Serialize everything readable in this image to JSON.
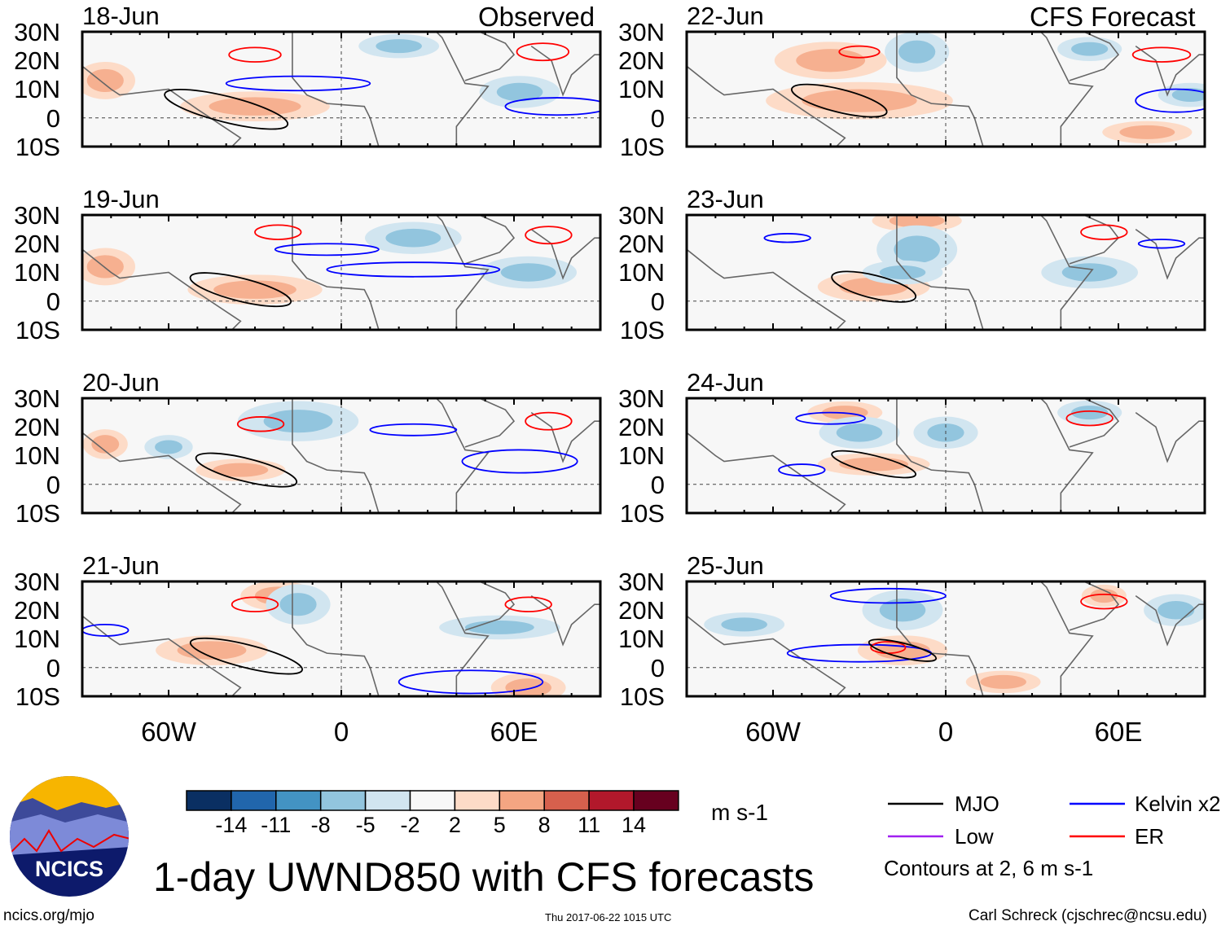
{
  "figure": {
    "title": "1-day UWND850 with CFS forecasts",
    "left_column_label": "Observed",
    "right_column_label": "CFS Forecast",
    "footer_left": "ncics.org/mjo",
    "footer_center": "Thu 2017-06-22 1015 UTC",
    "footer_right": "Carl Schreck (cjschrec@ncsu.edu)",
    "logo_text": "NCICS"
  },
  "axes": {
    "lat_labels": [
      "30N",
      "20N",
      "10N",
      "0",
      "10S"
    ],
    "lon_labels": [
      "60W",
      "0",
      "60E"
    ],
    "lon_range": [
      -90,
      90
    ],
    "lat_range": [
      -10,
      30
    ]
  },
  "panels": [
    {
      "date": "18-Jun",
      "mjo": [
        -40,
        3,
        22,
        4.5
      ],
      "kelvin": [
        [
          -15,
          12,
          25,
          2.5
        ],
        [
          75,
          4,
          18,
          3
        ]
      ],
      "er": [
        [
          -30,
          22,
          9,
          2.5
        ],
        [
          70,
          23,
          9,
          3
        ]
      ],
      "warm": [
        [
          -82,
          13,
          8,
          5
        ],
        [
          -30,
          4,
          20,
          4
        ]
      ],
      "cold": [
        [
          62,
          9,
          10,
          4
        ],
        [
          20,
          25,
          10,
          3
        ]
      ]
    },
    {
      "date": "19-Jun",
      "mjo": [
        -35,
        4,
        18,
        4
      ],
      "kelvin": [
        [
          -5,
          18,
          18,
          2
        ],
        [
          25,
          11,
          30,
          2.5
        ]
      ],
      "er": [
        [
          -22,
          24,
          8,
          2.5
        ],
        [
          72,
          23,
          8,
          3
        ]
      ],
      "warm": [
        [
          -82,
          12,
          8,
          5
        ],
        [
          -30,
          4,
          18,
          4
        ]
      ],
      "cold": [
        [
          65,
          10,
          12,
          4
        ],
        [
          25,
          22,
          12,
          4
        ]
      ]
    },
    {
      "date": "20-Jun",
      "mjo": [
        -33,
        5,
        18,
        4
      ],
      "kelvin": [
        [
          25,
          19,
          15,
          2
        ],
        [
          62,
          8,
          20,
          4
        ]
      ],
      "er": [
        [
          -28,
          21,
          8,
          2.5
        ],
        [
          72,
          22,
          8,
          3
        ]
      ],
      "warm": [
        [
          -82,
          14,
          6,
          4
        ],
        [
          -35,
          5,
          12,
          3
        ]
      ],
      "cold": [
        [
          -15,
          22,
          15,
          5
        ],
        [
          -60,
          13,
          6,
          3
        ]
      ]
    },
    {
      "date": "21-Jun",
      "mjo": [
        -33,
        4,
        20,
        4
      ],
      "kelvin": [
        [
          -82,
          13,
          8,
          2
        ],
        [
          45,
          -5,
          25,
          4
        ]
      ],
      "er": [
        [
          -30,
          22,
          8,
          2.5
        ],
        [
          65,
          22,
          8,
          2.5
        ]
      ],
      "warm": [
        [
          -45,
          6,
          15,
          4
        ],
        [
          65,
          -7,
          10,
          4
        ],
        [
          -22,
          25,
          10,
          4
        ]
      ],
      "cold": [
        [
          -15,
          22,
          8,
          5
        ],
        [
          55,
          14,
          15,
          3
        ]
      ]
    },
    {
      "date": "22-Jun",
      "mjo": [
        -37,
        6,
        17,
        4
      ],
      "kelvin": [
        [
          80,
          6,
          14,
          4
        ]
      ],
      "er": [
        [
          -30,
          23,
          7,
          2
        ],
        [
          75,
          22,
          10,
          2.5
        ]
      ],
      "warm": [
        [
          -30,
          6,
          25,
          5
        ],
        [
          -40,
          20,
          15,
          5
        ],
        [
          70,
          -5,
          12,
          3
        ]
      ],
      "cold": [
        [
          -10,
          23,
          8,
          5
        ],
        [
          50,
          24,
          8,
          3
        ],
        [
          85,
          8,
          8,
          3
        ]
      ]
    },
    {
      "date": "23-Jun",
      "mjo": [
        -25,
        5,
        15,
        4
      ],
      "kelvin": [
        [
          -55,
          22,
          8,
          1.5
        ],
        [
          75,
          20,
          8,
          1.5
        ]
      ],
      "er": [
        [
          55,
          24,
          8,
          2.5
        ]
      ],
      "warm": [
        [
          -25,
          5,
          15,
          4
        ],
        [
          -10,
          28,
          12,
          3
        ]
      ],
      "cold": [
        [
          -10,
          18,
          10,
          6
        ],
        [
          50,
          10,
          12,
          4
        ],
        [
          -15,
          10,
          10,
          3
        ]
      ]
    },
    {
      "date": "24-Jun",
      "mjo": [
        -25,
        7,
        15,
        3
      ],
      "kelvin": [
        [
          -40,
          23,
          12,
          2
        ],
        [
          -50,
          5,
          8,
          2
        ]
      ],
      "er": [
        [
          50,
          23,
          8,
          2.5
        ]
      ],
      "warm": [
        [
          -25,
          7,
          15,
          3
        ],
        [
          -35,
          25,
          10,
          3
        ]
      ],
      "cold": [
        [
          -30,
          18,
          10,
          4
        ],
        [
          0,
          18,
          8,
          4
        ],
        [
          50,
          25,
          8,
          3
        ]
      ]
    },
    {
      "date": "25-Jun",
      "mjo": [
        -15,
        6,
        12,
        2.5
      ],
      "kelvin": [
        [
          -20,
          25,
          20,
          2.5
        ],
        [
          -30,
          5,
          25,
          3
        ]
      ],
      "er": [
        [
          -20,
          7,
          6,
          2
        ],
        [
          55,
          23,
          8,
          2.5
        ]
      ],
      "warm": [
        [
          -15,
          6,
          12,
          4
        ],
        [
          55,
          25,
          6,
          3
        ],
        [
          20,
          -5,
          10,
          3
        ]
      ],
      "cold": [
        [
          -15,
          20,
          10,
          5
        ],
        [
          80,
          20,
          8,
          4
        ],
        [
          -70,
          15,
          10,
          3
        ]
      ]
    }
  ],
  "colorbar": {
    "labels": [
      "-14",
      "-11",
      "-8",
      "-5",
      "-2",
      "2",
      "5",
      "8",
      "11",
      "14"
    ],
    "colors": [
      "#0a2f62",
      "#2166ac",
      "#4393c3",
      "#92c5de",
      "#d1e5f0",
      "#f7f7f7",
      "#fddbc7",
      "#f4a582",
      "#d6604d",
      "#b2182b",
      "#67001f"
    ],
    "units": "m s-1"
  },
  "legend": {
    "items": [
      {
        "label": "MJO",
        "color": "#000000"
      },
      {
        "label": "Kelvin x2",
        "color": "#0000ff"
      },
      {
        "label": "Low",
        "color": "#a020f0"
      },
      {
        "label": "ER",
        "color": "#ff0000"
      }
    ],
    "note": "Contours at 2, 6 m s-1"
  }
}
